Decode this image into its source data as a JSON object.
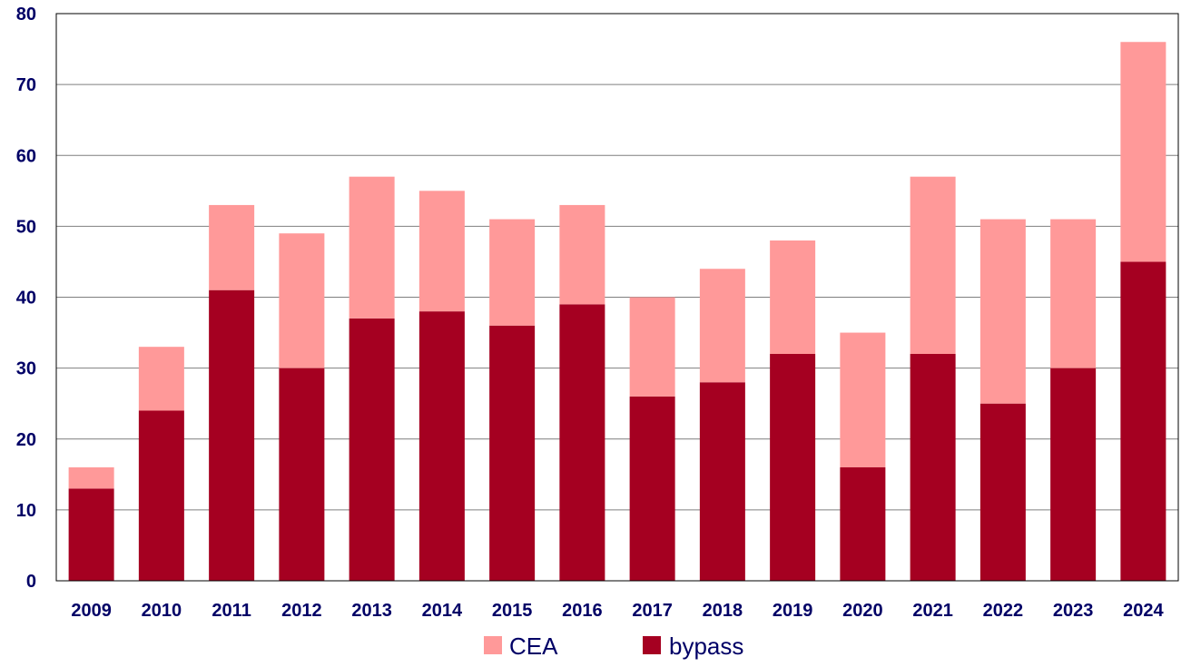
{
  "chart_data": {
    "type": "bar",
    "stacked": true,
    "categories": [
      "2009",
      "2010",
      "2011",
      "2012",
      "2013",
      "2014",
      "2015",
      "2016",
      "2017",
      "2018",
      "2019",
      "2020",
      "2021",
      "2022",
      "2023",
      "2024"
    ],
    "series": [
      {
        "name": "bypass",
        "color": "#a50021",
        "values": [
          13,
          24,
          41,
          30,
          37,
          38,
          36,
          39,
          26,
          28,
          32,
          16,
          32,
          25,
          30,
          45
        ]
      },
      {
        "name": "CEA",
        "color": "#ff9999",
        "values": [
          3,
          9,
          12,
          19,
          20,
          17,
          15,
          14,
          14,
          16,
          16,
          19,
          25,
          26,
          21,
          31
        ]
      }
    ],
    "ylim": [
      0,
      80
    ],
    "yticks": [
      "0",
      "10",
      "20",
      "30",
      "40",
      "50",
      "60",
      "70",
      "80"
    ],
    "grid": true,
    "legend": {
      "placement": "bottom",
      "items": [
        {
          "label": "CEA",
          "color": "#ff9999"
        },
        {
          "label": "bypass",
          "color": "#a50021"
        }
      ]
    },
    "axis_color": "#000066"
  }
}
